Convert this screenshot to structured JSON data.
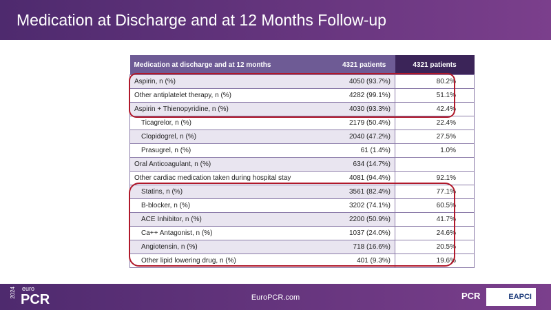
{
  "header": {
    "title": "Medication at Discharge and at 12 Months Follow-up"
  },
  "table": {
    "columns": [
      "Medication at discharge and at 12 months",
      "4321 patients",
      "4321 patients"
    ],
    "rows": [
      [
        "Aspirin, n (%)",
        "4050 (93.7%)",
        "80.2%"
      ],
      [
        "Other antiplatelet therapy, n (%)",
        "4282 (99.1%)",
        "51.1%"
      ],
      [
        "Aspirin + Thienopyridine, n (%)",
        "4030 (93.3%)",
        "42.4%"
      ],
      [
        "Ticagrelor, n (%)",
        "2179 (50.4%)",
        "22.4%"
      ],
      [
        "Clopidogrel, n (%)",
        "2040 (47.2%)",
        "27.5%"
      ],
      [
        "Prasugrel, n (%)",
        "61 (1.4%)",
        "1.0%"
      ],
      [
        "Oral Anticoagulant, n (%)",
        "634 (14.7%)",
        null
      ],
      [
        "Other cardiac medication taken during hospital stay",
        "4081 (94.4%)",
        "92.1%"
      ],
      [
        "Statins, n (%)",
        "3561 (82.4%)",
        "77.1%"
      ],
      [
        "B-blocker, n (%)",
        "3202 (74.1%)",
        "60.5%"
      ],
      [
        "ACE Inhibitor, n (%)",
        "2200 (50.9%)",
        "41.7%"
      ],
      [
        "Ca++ Antagonist, n (%)",
        "1037 (24.0%)",
        "24.6%"
      ],
      [
        "Angiotensin, n (%)",
        "718 (16.6%)",
        "20.5%"
      ],
      [
        "Other lipid lowering drug, n (%)",
        "401 (9.3%)",
        "19.6%"
      ]
    ]
  },
  "footer": {
    "year": "2024",
    "brand_small": "euro",
    "brand": "PCR",
    "url": "EuroPCR.com",
    "logo_pcr": "PCR",
    "logo_eapci": "EAPCI"
  }
}
